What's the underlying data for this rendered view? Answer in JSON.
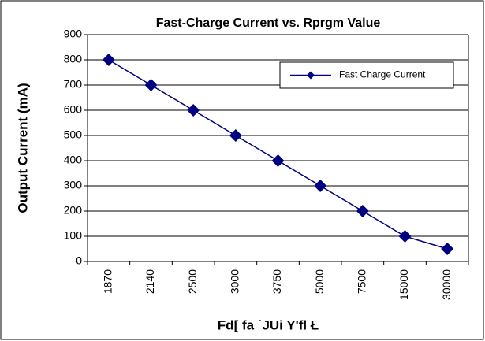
{
  "chart_data": {
    "type": "line",
    "title": "Fast-Charge Current vs. Rprgm Value",
    "xlabel": "Fd[ fa ˙JUi Y'fl Ł",
    "ylabel": "Output Current (mA)",
    "categories": [
      "1870",
      "2140",
      "2500",
      "3000",
      "3750",
      "5000",
      "7500",
      "15000",
      "30000"
    ],
    "series": [
      {
        "name": "Fast Charge Current",
        "color": "#000080",
        "values": [
          800,
          700,
          600,
          500,
          400,
          300,
          200,
          100,
          50
        ]
      }
    ],
    "ylim": [
      0,
      900
    ],
    "yticks": [
      0,
      100,
      200,
      300,
      400,
      500,
      600,
      700,
      800,
      900
    ],
    "grid": true,
    "legend": "upper right"
  }
}
